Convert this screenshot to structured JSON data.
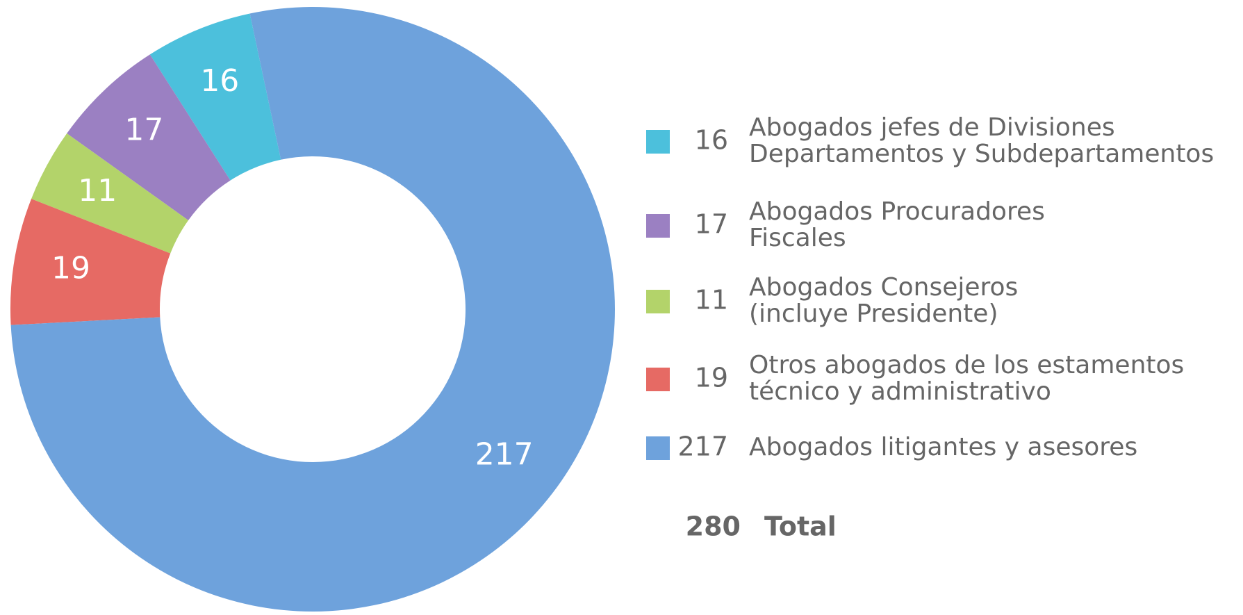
{
  "chart_data": {
    "type": "donut",
    "categories": [
      [
        "Abogados jefes de Divisiones",
        "Departamentos y Subdepartamentos"
      ],
      [
        "Abogados Procuradores",
        "Fiscales"
      ],
      [
        "Abogados Consejeros",
        "(incluye Presidente)"
      ],
      [
        "Otros abogados de los estamentos",
        "técnico y administrativo"
      ],
      [
        "Abogados litigantes y asesores"
      ]
    ],
    "values": [
      16,
      17,
      11,
      19,
      217
    ],
    "colors": [
      "#4cc0dc",
      "#9b80c2",
      "#b3d36a",
      "#e66a64",
      "#6ea2dc"
    ],
    "total": 280,
    "total_label": "Total"
  }
}
